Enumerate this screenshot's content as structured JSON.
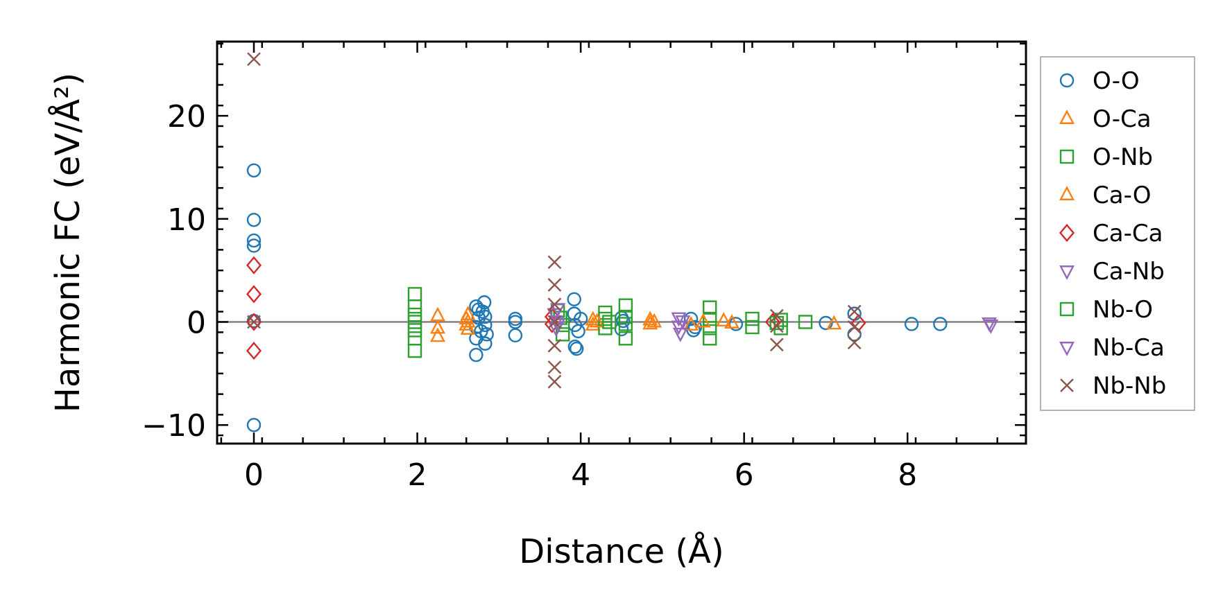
{
  "chart_data": {
    "type": "scatter",
    "title": "",
    "xlabel": "Distance (Å)",
    "ylabel": "Harmonic FC (eV/Å²)",
    "xlim": [
      -0.45,
      9.45
    ],
    "ylim": [
      -11.8,
      27.2
    ],
    "x_ticks": [
      0,
      2,
      4,
      6,
      8
    ],
    "y_ticks": [
      -10,
      0,
      10,
      20
    ],
    "x_tick_labels": [
      "0",
      "2",
      "4",
      "6",
      "8"
    ],
    "y_tick_labels": [
      "−10",
      "0",
      "10",
      "20"
    ],
    "reference_line_y": 0,
    "grid": false,
    "legend_position": "outside-right",
    "series": [
      {
        "name": "O-O",
        "marker": "circle",
        "color": "#1f77b4",
        "points": [
          [
            0,
            14.7
          ],
          [
            0,
            9.9
          ],
          [
            0,
            7.9
          ],
          [
            0,
            7.4
          ],
          [
            0,
            0.1
          ],
          [
            0,
            -10.0
          ],
          [
            2.72,
            1.5
          ],
          [
            2.72,
            -0.5
          ],
          [
            2.72,
            -1.6
          ],
          [
            2.72,
            -3.2
          ],
          [
            2.75,
            1.2
          ],
          [
            2.75,
            0.4
          ],
          [
            2.78,
            -0.9
          ],
          [
            2.8,
            1.0
          ],
          [
            2.82,
            1.9
          ],
          [
            2.83,
            0.5
          ],
          [
            2.83,
            -0.3
          ],
          [
            2.83,
            -2.1
          ],
          [
            2.85,
            -1.2
          ],
          [
            3.2,
            0.3
          ],
          [
            3.2,
            0.0
          ],
          [
            3.2,
            -1.3
          ],
          [
            3.92,
            2.2
          ],
          [
            3.92,
            0.8
          ],
          [
            3.93,
            -0.3
          ],
          [
            3.93,
            -2.4
          ],
          [
            3.95,
            -2.6
          ],
          [
            3.97,
            -0.9
          ],
          [
            4.0,
            0.3
          ],
          [
            4.5,
            0.4
          ],
          [
            4.5,
            -0.7
          ],
          [
            4.52,
            0.1
          ],
          [
            5.35,
            0.3
          ],
          [
            5.38,
            -0.8
          ],
          [
            5.4,
            -0.5
          ],
          [
            5.9,
            -0.2
          ],
          [
            7.0,
            -0.1
          ],
          [
            7.35,
            0.8
          ],
          [
            7.35,
            -1.2
          ],
          [
            8.05,
            -0.2
          ],
          [
            8.4,
            -0.2
          ]
        ]
      },
      {
        "name": "O-Ca",
        "marker": "triangle-up",
        "color": "#ff7f0e",
        "points": [
          [
            2.25,
            0.6
          ],
          [
            2.25,
            -0.6
          ],
          [
            2.25,
            -1.4
          ],
          [
            2.62,
            0.7
          ],
          [
            2.62,
            0.0
          ],
          [
            2.62,
            -0.7
          ],
          [
            4.15,
            0.2
          ],
          [
            4.15,
            -0.3
          ],
          [
            4.85,
            0.2
          ],
          [
            4.85,
            -0.2
          ],
          [
            5.35,
            -0.3
          ],
          [
            5.75,
            0.1
          ],
          [
            7.1,
            -0.2
          ]
        ]
      },
      {
        "name": "O-Nb",
        "marker": "square",
        "color": "#2ca02c",
        "points": [
          [
            1.97,
            2.7
          ],
          [
            1.97,
            1.5
          ],
          [
            1.97,
            0.7
          ],
          [
            1.97,
            0.0
          ],
          [
            1.97,
            -0.8
          ],
          [
            1.97,
            -1.6
          ],
          [
            1.97,
            -2.8
          ],
          [
            3.72,
            1.1
          ],
          [
            3.75,
            0.4
          ],
          [
            3.78,
            -0.3
          ],
          [
            3.78,
            -1.2
          ],
          [
            4.3,
            0.9
          ],
          [
            4.3,
            0.3
          ],
          [
            4.3,
            -0.6
          ],
          [
            4.55,
            1.6
          ],
          [
            4.55,
            0.5
          ],
          [
            4.55,
            -0.2
          ],
          [
            4.55,
            -1.6
          ],
          [
            5.58,
            1.4
          ],
          [
            5.58,
            0.3
          ],
          [
            5.58,
            -0.6
          ],
          [
            5.58,
            -1.6
          ],
          [
            6.1,
            0.3
          ],
          [
            6.1,
            -0.5
          ],
          [
            6.45,
            0.2
          ],
          [
            6.45,
            -0.6
          ],
          [
            6.75,
            0.0
          ]
        ]
      },
      {
        "name": "Ca-O",
        "marker": "triangle-up",
        "color": "#ff7f0e",
        "points": [
          [
            2.6,
            0.3
          ],
          [
            2.6,
            -0.3
          ],
          [
            4.2,
            0.0
          ],
          [
            4.9,
            0.0
          ],
          [
            5.5,
            0.0
          ],
          [
            5.85,
            -0.1
          ]
        ]
      },
      {
        "name": "Ca-Ca",
        "marker": "diamond",
        "color": "#d62728",
        "points": [
          [
            0,
            5.5
          ],
          [
            0,
            2.7
          ],
          [
            0,
            0.0
          ],
          [
            0,
            -2.8
          ],
          [
            3.65,
            0.5
          ],
          [
            3.65,
            -0.2
          ],
          [
            6.35,
            0.0
          ],
          [
            7.4,
            -0.1
          ]
        ]
      },
      {
        "name": "Ca-Nb",
        "marker": "triangle-down",
        "color": "#9467bd",
        "points": [
          [
            3.68,
            0.8
          ],
          [
            3.7,
            0.1
          ],
          [
            3.7,
            -0.6
          ],
          [
            5.2,
            0.4
          ],
          [
            5.2,
            -0.4
          ],
          [
            5.22,
            -1.1
          ],
          [
            9.0,
            -0.1
          ]
        ]
      },
      {
        "name": "Nb-O",
        "marker": "square",
        "color": "#2ca02c",
        "points": [
          [
            4.35,
            0.0
          ],
          [
            6.4,
            -0.1
          ]
        ]
      },
      {
        "name": "Nb-Ca",
        "marker": "triangle-down",
        "color": "#9467bd",
        "points": [
          [
            3.72,
            1.3
          ],
          [
            3.72,
            -0.2
          ],
          [
            5.25,
            0.1
          ],
          [
            9.02,
            -0.3
          ]
        ]
      },
      {
        "name": "Nb-Nb",
        "marker": "x",
        "color": "#8c564b",
        "points": [
          [
            0,
            25.5
          ],
          [
            0,
            0.0
          ],
          [
            3.68,
            5.8
          ],
          [
            3.68,
            3.6
          ],
          [
            3.68,
            1.7
          ],
          [
            3.68,
            0.0
          ],
          [
            3.68,
            -2.3
          ],
          [
            3.68,
            -4.4
          ],
          [
            3.68,
            -5.8
          ],
          [
            6.4,
            0.6
          ],
          [
            6.4,
            -0.4
          ],
          [
            6.4,
            -2.2
          ],
          [
            7.35,
            1.0
          ],
          [
            7.35,
            -0.5
          ],
          [
            7.35,
            -2.0
          ]
        ]
      }
    ]
  }
}
